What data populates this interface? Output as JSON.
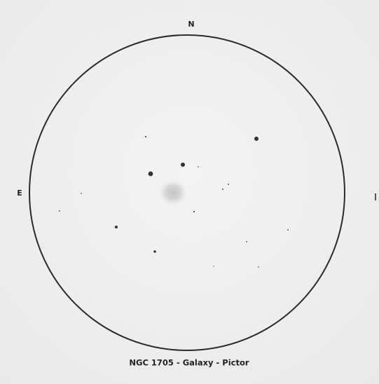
{
  "labels": {
    "north": "N",
    "east": "E"
  },
  "caption": "NGC 1705 - Galaxy - Pictor"
}
